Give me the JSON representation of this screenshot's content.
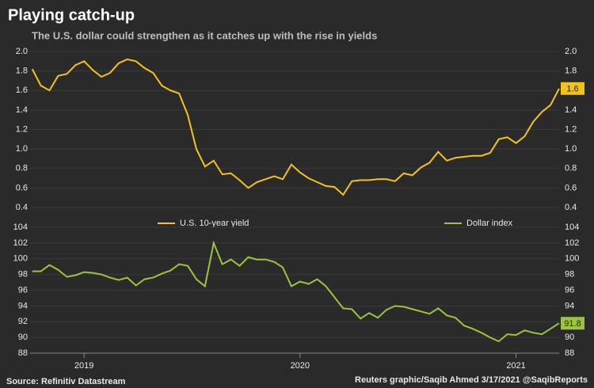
{
  "title": "Playing catch-up",
  "subtitle": "The U.S. dollar could strengthen as it catches up with the rise in yields",
  "source": "Source: Refinitiv Datastream",
  "credit": "Reuters graphic/Saqib Ahmed 3/17/2021 @SaqibReports",
  "chart_data": [
    {
      "type": "line",
      "xlim": [
        2018.75,
        2021.2
      ],
      "ylim": [
        0.4,
        2.0
      ],
      "yticks": [
        0.4,
        0.6,
        0.8,
        {
          "value": 1.0,
          "label": "1.0"
        },
        1.2,
        1.4,
        1.6,
        1.8,
        {
          "value": 2.0,
          "label": "2.0"
        }
      ],
      "x": [
        2018.76,
        2018.8,
        2018.84,
        2018.88,
        2018.92,
        2018.96,
        2019,
        2019.04,
        2019.08,
        2019.12,
        2019.16,
        2019.2,
        2019.24,
        2019.28,
        2019.32,
        2019.36,
        2019.4,
        2019.44,
        2019.48,
        2019.52,
        2019.56,
        2019.6,
        2019.64,
        2019.68,
        2019.72,
        2019.76,
        2019.8,
        2019.84,
        2019.88,
        2019.92,
        2019.96,
        2020,
        2020.04,
        2020.08,
        2020.12,
        2020.16,
        2020.2,
        2020.24,
        2020.28,
        2020.32,
        2020.36,
        2020.4,
        2020.44,
        2020.48,
        2020.52,
        2020.56,
        2020.6,
        2020.64,
        2020.68,
        2020.72,
        2020.76,
        2020.8,
        2020.84,
        2020.88,
        2020.92,
        2020.96,
        2021,
        2021.04,
        2021.08,
        2021.12,
        2021.16,
        2021.2
      ],
      "series": [
        {
          "name": "U.S. 10-year yield",
          "color": "#f2c318",
          "last_label": "1.6",
          "values": [
            1.82,
            1.65,
            1.6,
            1.75,
            1.77,
            1.86,
            1.9,
            1.81,
            1.74,
            1.78,
            1.88,
            1.92,
            1.9,
            1.83,
            1.78,
            1.65,
            1.6,
            1.57,
            1.35,
            1.0,
            0.82,
            0.88,
            0.74,
            0.75,
            0.68,
            0.6,
            0.66,
            0.69,
            0.72,
            0.69,
            0.84,
            0.76,
            0.7,
            0.66,
            0.62,
            0.61,
            0.53,
            0.67,
            0.68,
            0.68,
            0.69,
            0.69,
            0.67,
            0.75,
            0.73,
            0.81,
            0.86,
            0.97,
            0.88,
            0.91,
            0.92,
            0.93,
            0.93,
            0.96,
            1.1,
            1.12,
            1.06,
            1.13,
            1.28,
            1.38,
            1.45,
            1.62
          ]
        }
      ]
    },
    {
      "type": "line",
      "xlim": [
        2018.75,
        2021.2
      ],
      "xticks": [
        2019,
        2020,
        2021
      ],
      "ylim": [
        88,
        104
      ],
      "yticks": [
        88,
        90,
        92,
        94,
        96,
        98,
        100,
        102,
        104
      ],
      "x": [
        2018.76,
        2018.8,
        2018.84,
        2018.88,
        2018.92,
        2018.96,
        2019,
        2019.04,
        2019.08,
        2019.12,
        2019.16,
        2019.2,
        2019.24,
        2019.28,
        2019.32,
        2019.36,
        2019.4,
        2019.44,
        2019.48,
        2019.52,
        2019.56,
        2019.6,
        2019.64,
        2019.68,
        2019.72,
        2019.76,
        2019.8,
        2019.84,
        2019.88,
        2019.92,
        2019.96,
        2020,
        2020.04,
        2020.08,
        2020.12,
        2020.16,
        2020.2,
        2020.24,
        2020.28,
        2020.32,
        2020.36,
        2020.4,
        2020.44,
        2020.48,
        2020.52,
        2020.56,
        2020.6,
        2020.64,
        2020.68,
        2020.72,
        2020.76,
        2020.8,
        2020.84,
        2020.88,
        2020.92,
        2020.96,
        2021,
        2021.04,
        2021.08,
        2021.12,
        2021.16,
        2021.2
      ],
      "series": [
        {
          "name": "Dollar index",
          "color": "#9bc53d",
          "last_label": "91.8",
          "values": [
            98.4,
            98.4,
            99.2,
            98.6,
            97.7,
            97.9,
            98.3,
            98.2,
            98.0,
            97.6,
            97.3,
            97.6,
            96.6,
            97.4,
            97.6,
            98.1,
            98.5,
            99.3,
            99.1,
            97.4,
            96.5,
            102.0,
            99.3,
            99.9,
            99.1,
            100.2,
            99.9,
            99.9,
            99.6,
            98.9,
            96.5,
            97.1,
            96.8,
            97.4,
            96.5,
            95.1,
            93.7,
            93.6,
            92.4,
            93.1,
            92.5,
            93.5,
            94.0,
            93.9,
            93.6,
            93.3,
            93.0,
            93.7,
            92.8,
            92.5,
            91.5,
            91.1,
            90.6,
            90.0,
            89.5,
            90.4,
            90.3,
            90.9,
            90.6,
            90.4,
            91.1,
            91.8
          ]
        }
      ]
    }
  ]
}
